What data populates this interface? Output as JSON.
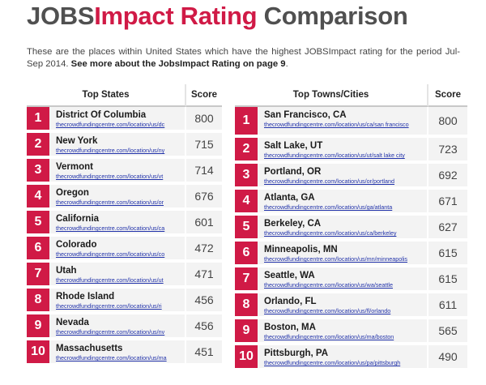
{
  "header": {
    "title_part1": "JOBS",
    "title_part2": "Impact Rating",
    "title_part3": " Comparison",
    "intro": "These are the places within United States which have the highest JOBSImpact rating for the period Jul-Sep 2014.",
    "more": "See more about the JobsImpact Rating on page 9",
    "more_suffix": "."
  },
  "states_table": {
    "headers": {
      "name": "Top States",
      "score": "Score"
    },
    "rows": [
      {
        "rank": "1",
        "name": "District Of Columbia",
        "link": "thecrowdfundingcentre.com/location/us/dc",
        "score": "800"
      },
      {
        "rank": "2",
        "name": "New York",
        "link": "thecrowdfundingcentre.com/location/us/ny",
        "score": "715"
      },
      {
        "rank": "3",
        "name": "Vermont",
        "link": "thecrowdfundingcentre.com/location/us/vt",
        "score": "714"
      },
      {
        "rank": "4",
        "name": "Oregon",
        "link": "thecrowdfundingcentre.com/location/us/or",
        "score": "676"
      },
      {
        "rank": "5",
        "name": "California",
        "link": "thecrowdfundingcentre.com/location/us/ca",
        "score": "601"
      },
      {
        "rank": "6",
        "name": "Colorado",
        "link": "thecrowdfundingcentre.com/location/us/co",
        "score": "472"
      },
      {
        "rank": "7",
        "name": "Utah",
        "link": "thecrowdfundingcentre.com/location/us/ut",
        "score": "471"
      },
      {
        "rank": "8",
        "name": "Rhode Island",
        "link": "thecrowdfundingcentre.com/location/us/ri",
        "score": "456"
      },
      {
        "rank": "9",
        "name": "Nevada",
        "link": "thecrowdfundingcentre.com/location/us/nv",
        "score": "456"
      },
      {
        "rank": "10",
        "name": "Massachusetts",
        "link": "thecrowdfundingcentre.com/location/us/ma",
        "score": "451"
      }
    ]
  },
  "towns_table": {
    "headers": {
      "name": "Top Towns/Cities",
      "score": "Score"
    },
    "rows": [
      {
        "rank": "1",
        "name": "San Francisco, CA",
        "link": "thecrowdfundingcentre.com/location/us/ca/san francisco",
        "score": "800"
      },
      {
        "rank": "2",
        "name": "Salt Lake, UT",
        "link": "thecrowdfundingcentre.com/location/us/ut/salt lake city",
        "score": "723"
      },
      {
        "rank": "3",
        "name": "Portland, OR",
        "link": "thecrowdfundingcentre.com/location/us/or/portland",
        "score": "692"
      },
      {
        "rank": "4",
        "name": "Atlanta, GA",
        "link": "thecrowdfundingcentre.com/location/us/ga/atlanta",
        "score": "671"
      },
      {
        "rank": "5",
        "name": "Berkeley, CA",
        "link": "thecrowdfundingcentre.com/location/us/ca/berkeley",
        "score": "627"
      },
      {
        "rank": "6",
        "name": "Minneapolis, MN",
        "link": "thecrowdfundingcentre.com/location/us/mn/minneapolis",
        "score": "615"
      },
      {
        "rank": "7",
        "name": "Seattle, WA",
        "link": "thecrowdfundingcentre.com/location/us/wa/seattle",
        "score": "615"
      },
      {
        "rank": "8",
        "name": "Orlando, FL",
        "link": "thecrowdfundingcentre.com/location/us/fl/orlando",
        "score": "611"
      },
      {
        "rank": "9",
        "name": "Boston, MA",
        "link": "thecrowdfundingcentre.com/location/us/ma/boston",
        "score": "565"
      },
      {
        "rank": "10",
        "name": "Pittsburgh, PA",
        "link": "thecrowdfundingcentre.com/location/us/pa/pittsburgh",
        "score": "490"
      }
    ]
  },
  "colors": {
    "accent": "#d01a46",
    "title_gray": "#505050",
    "row_bg": "#f3f3f3",
    "link": "#2233aa"
  }
}
